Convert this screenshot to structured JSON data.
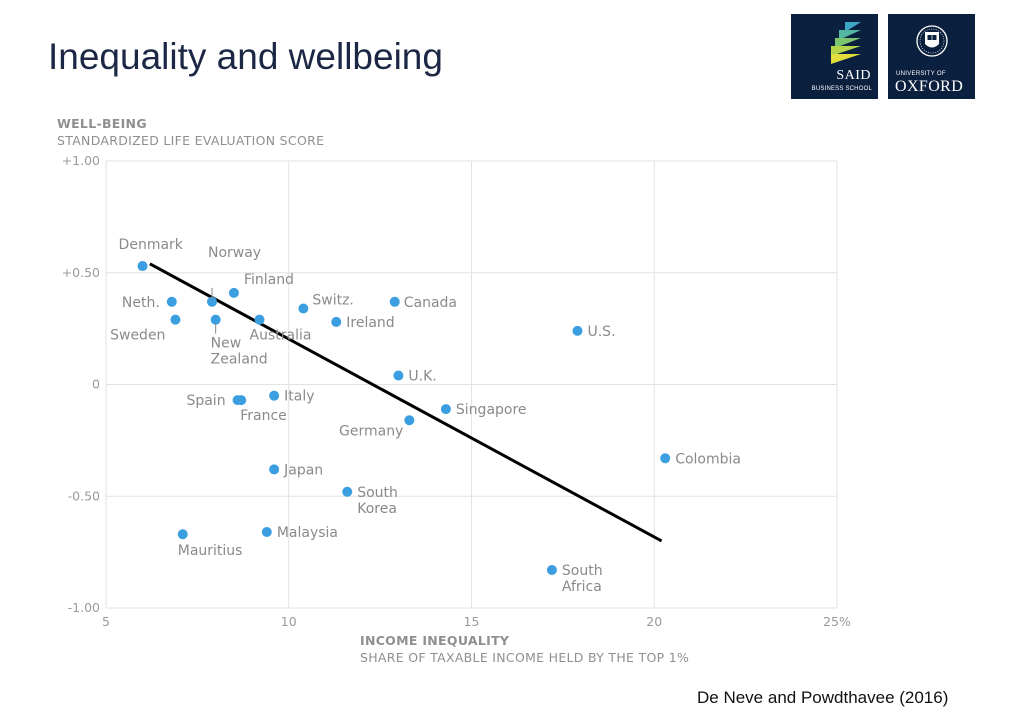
{
  "slide": {
    "title": "Inequality and wellbeing",
    "citation": "De Neve and Powdthavee (2016)"
  },
  "logos": {
    "said": {
      "name": "SAID",
      "sub": "BUSINESS SCHOOL"
    },
    "oxford": {
      "sub": "UNIVERSITY OF",
      "name": "OXFORD"
    },
    "bg_color": "#0b1f3f"
  },
  "chart_data": {
    "type": "scatter",
    "title": "",
    "ylabel": "WELL-BEING",
    "ylabel_sub": "STANDARDIZED LIFE EVALUATION SCORE",
    "xlabel": "INCOME INEQUALITY",
    "xlabel_sub": "SHARE OF TAXABLE INCOME HELD BY THE TOP 1%",
    "xlim": [
      5,
      25
    ],
    "ylim": [
      -1.0,
      1.0
    ],
    "x_ticks": [
      {
        "v": 5,
        "label": "5"
      },
      {
        "v": 10,
        "label": "10"
      },
      {
        "v": 15,
        "label": "15"
      },
      {
        "v": 20,
        "label": "20"
      },
      {
        "v": 25,
        "label": "25%"
      }
    ],
    "y_ticks": [
      {
        "v": 1.0,
        "label": "+1.00"
      },
      {
        "v": 0.5,
        "label": "+0.50"
      },
      {
        "v": 0,
        "label": "0"
      },
      {
        "v": -0.5,
        "label": "-0.50"
      },
      {
        "v": -1.0,
        "label": "-1.00"
      }
    ],
    "grid": true,
    "point_color": "#3a9ee0",
    "line_color": "#000000",
    "points": [
      {
        "name": "Denmark",
        "x": 6.0,
        "y": 0.53
      },
      {
        "name": "Norway",
        "x": 7.9,
        "y": 0.37
      },
      {
        "name": "Finland",
        "x": 8.5,
        "y": 0.41
      },
      {
        "name": "Neth.",
        "x": 6.8,
        "y": 0.37
      },
      {
        "name": "Sweden",
        "x": 6.9,
        "y": 0.29
      },
      {
        "name": "New Zealand",
        "x": 8.0,
        "y": 0.29
      },
      {
        "name": "Australia",
        "x": 9.2,
        "y": 0.29
      },
      {
        "name": "Switz.",
        "x": 10.4,
        "y": 0.34
      },
      {
        "name": "Ireland",
        "x": 11.3,
        "y": 0.28
      },
      {
        "name": "Canada",
        "x": 12.9,
        "y": 0.37
      },
      {
        "name": "U.S.",
        "x": 17.9,
        "y": 0.24
      },
      {
        "name": "U.K.",
        "x": 13.0,
        "y": 0.04
      },
      {
        "name": "Italy",
        "x": 9.6,
        "y": -0.05
      },
      {
        "name": "Spain",
        "x": 8.6,
        "y": -0.07
      },
      {
        "name": "France",
        "x": 8.7,
        "y": -0.07
      },
      {
        "name": "Singapore",
        "x": 14.3,
        "y": -0.11
      },
      {
        "name": "Germany",
        "x": 13.3,
        "y": -0.16
      },
      {
        "name": "Colombia",
        "x": 20.3,
        "y": -0.33
      },
      {
        "name": "Japan",
        "x": 9.6,
        "y": -0.38
      },
      {
        "name": "South Korea",
        "x": 11.6,
        "y": -0.48
      },
      {
        "name": "Malaysia",
        "x": 9.4,
        "y": -0.66
      },
      {
        "name": "Mauritius",
        "x": 7.1,
        "y": -0.67
      },
      {
        "name": "South Africa",
        "x": 17.2,
        "y": -0.83
      }
    ],
    "trend_line": {
      "x": [
        6.2,
        20.2
      ],
      "y": [
        0.54,
        -0.7
      ]
    }
  }
}
